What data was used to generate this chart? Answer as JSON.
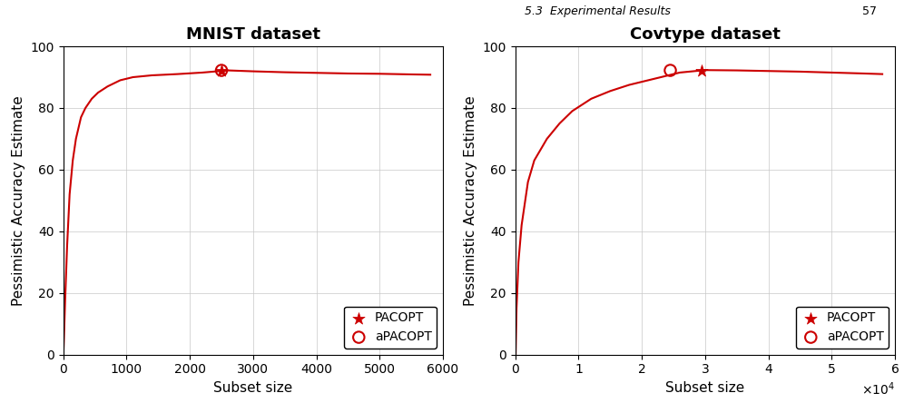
{
  "mnist": {
    "title": "MNIST dataset",
    "xlabel": "Subset size",
    "ylabel": "Pessimistic Accuracy Estimate",
    "xlim": [
      0,
      6000
    ],
    "ylim": [
      0,
      100
    ],
    "xticks": [
      0,
      1000,
      2000,
      3000,
      4000,
      5000,
      6000
    ],
    "yticks": [
      0,
      20,
      40,
      60,
      80,
      100
    ],
    "curve_x": [
      1,
      10,
      30,
      60,
      100,
      150,
      200,
      280,
      350,
      450,
      550,
      700,
      900,
      1100,
      1400,
      1800,
      2200,
      2600,
      3000,
      3500,
      4000,
      4500,
      5000,
      5500,
      5800
    ],
    "curve_y": [
      0,
      5,
      18,
      35,
      52,
      63,
      70,
      77,
      80,
      83,
      85,
      87,
      89,
      90,
      90.6,
      91.0,
      91.5,
      92.2,
      91.9,
      91.6,
      91.4,
      91.2,
      91.1,
      90.9,
      90.8
    ],
    "pacopt_x": 2500,
    "pacopt_y": 92.2,
    "apacopt_x": 2500,
    "apacopt_y": 92.2
  },
  "covtype": {
    "title": "Covtype dataset",
    "xlabel": "Subset size",
    "ylabel": "Pessimistic Accuracy Estimate",
    "xlim": [
      0,
      60000
    ],
    "ylim": [
      0,
      100
    ],
    "xticks": [
      0,
      10000,
      20000,
      30000,
      40000,
      50000,
      60000
    ],
    "yticks": [
      0,
      20,
      40,
      60,
      80,
      100
    ],
    "curve_x": [
      50,
      200,
      500,
      1000,
      2000,
      3000,
      5000,
      7000,
      9000,
      12000,
      15000,
      18000,
      22000,
      26000,
      30000,
      35000,
      40000,
      45000,
      50000,
      55000,
      58000
    ],
    "curve_y": [
      0,
      15,
      30,
      42,
      56,
      63,
      70,
      75,
      79,
      83,
      85.5,
      87.5,
      89.5,
      91.5,
      92.3,
      92.2,
      92.0,
      91.8,
      91.5,
      91.2,
      91.0
    ],
    "pacopt_x": 29500,
    "pacopt_y": 92.2,
    "apacopt_x": 24500,
    "apacopt_y": 92.2
  },
  "line_color": "#cc0000",
  "marker_color": "#cc0000",
  "star_size": 100,
  "circle_size": 80,
  "legend_fontsize": 10,
  "title_fontsize": 13,
  "axis_label_fontsize": 11,
  "tick_fontsize": 10,
  "bg_color": "#f0f0f0",
  "top_strip_height": 0.055,
  "top_strip_color": "#d8d8d8"
}
